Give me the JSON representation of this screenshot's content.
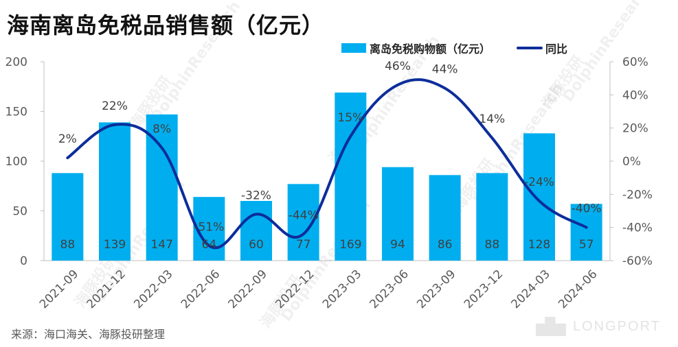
{
  "title": "海南离岛免税品销售额（亿元）",
  "source": "来源：海口海关、海豚投研整理",
  "brand": "LONGPORT",
  "watermark": {
    "cn": "海豚投研",
    "en": "DolphinResearch"
  },
  "colors": {
    "bar": "#00aeef",
    "line": "#0d2d9a",
    "axis": "#bfbfbf"
  },
  "chart_data": {
    "type": "bar+line",
    "title": "海南离岛免税品销售额（亿元）",
    "categories": [
      "2021-09",
      "2021-12",
      "2022-03",
      "2022-06",
      "2022-09",
      "2022-12",
      "2023-03",
      "2023-06",
      "2023-09",
      "2023-12",
      "2024-03",
      "2024-06"
    ],
    "series": [
      {
        "name": "离岛免税购物额（亿元）",
        "type": "bar",
        "axis": "left",
        "values": [
          88,
          139,
          147,
          64,
          60,
          77,
          169,
          94,
          86,
          88,
          128,
          57
        ],
        "labels": [
          "88",
          "139",
          "147",
          "64",
          "60",
          "77",
          "169",
          "94",
          "86",
          "88",
          "128",
          "57"
        ]
      },
      {
        "name": "同比",
        "type": "line",
        "axis": "right",
        "values": [
          2,
          22,
          8,
          -51,
          -32,
          -44,
          15,
          46,
          44,
          14,
          -24,
          -40
        ],
        "labels": [
          "2%",
          "22%",
          "8%",
          "-51%",
          "-32%",
          "-44%",
          "15%",
          "46%",
          "44%",
          "14%",
          "-24%",
          "-40%"
        ]
      }
    ],
    "left_axis": {
      "ylim": [
        0,
        200
      ],
      "ticks": [
        0,
        50,
        100,
        150,
        200
      ],
      "tick_labels": [
        "0",
        "50",
        "100",
        "150",
        "200"
      ]
    },
    "right_axis": {
      "ylim": [
        -60,
        60
      ],
      "ticks": [
        -60,
        -40,
        -20,
        0,
        20,
        40,
        60
      ],
      "tick_labels": [
        "-60%",
        "-40%",
        "-20%",
        "0%",
        "20%",
        "40%",
        "60%"
      ]
    },
    "legend_position": "top-right",
    "grid": false
  }
}
